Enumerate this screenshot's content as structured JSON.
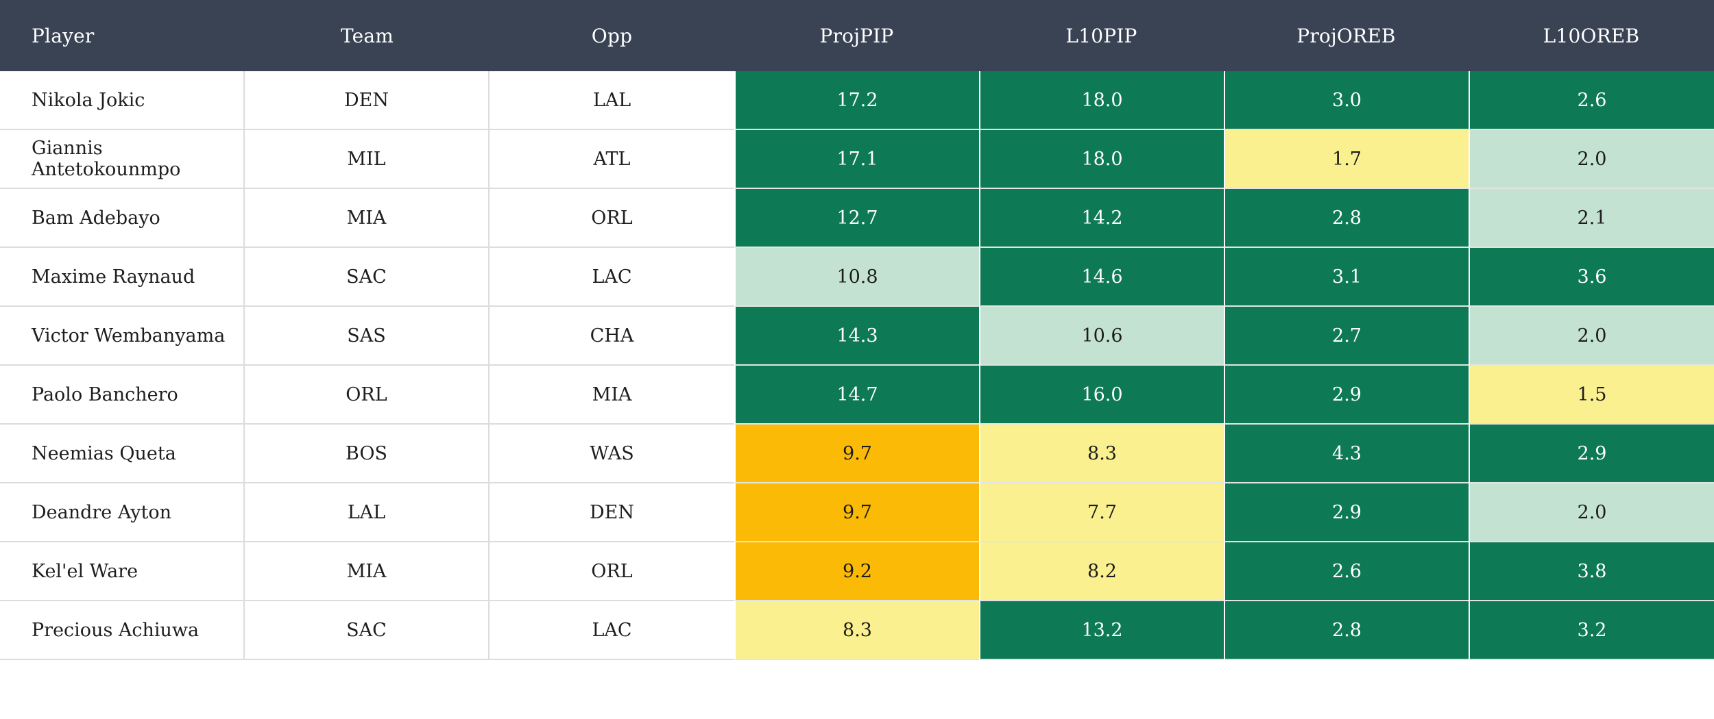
{
  "header": {
    "bg": "#3A4354",
    "fg": "#FFFFFF"
  },
  "palette": {
    "green": {
      "bg": "#0E7A55",
      "fg": "#FFFFFF"
    },
    "mint": {
      "bg": "#C4E2D2",
      "fg": "#1C1C1C"
    },
    "yellow": {
      "bg": "#FAF08F",
      "fg": "#1C1C1C"
    },
    "orange": {
      "bg": "#FBBA05",
      "fg": "#1C1C1C"
    }
  },
  "table": {
    "columns": [
      "Player",
      "Team",
      "Opp",
      "ProjPIP",
      "L10PIP",
      "ProjOREB",
      "L10OREB"
    ],
    "rows": [
      {
        "player": "Nikola Jokic",
        "team": "DEN",
        "opp": "LAL",
        "proj_pip": {
          "value": "17.2",
          "level": "green"
        },
        "l10_pip": {
          "value": "18.0",
          "level": "green"
        },
        "proj_oreb": {
          "value": "3.0",
          "level": "green"
        },
        "l10_oreb": {
          "value": "2.6",
          "level": "green"
        }
      },
      {
        "player": "Giannis Antetokounmpo",
        "team": "MIL",
        "opp": "ATL",
        "proj_pip": {
          "value": "17.1",
          "level": "green"
        },
        "l10_pip": {
          "value": "18.0",
          "level": "green"
        },
        "proj_oreb": {
          "value": "1.7",
          "level": "yellow"
        },
        "l10_oreb": {
          "value": "2.0",
          "level": "mint"
        }
      },
      {
        "player": "Bam Adebayo",
        "team": "MIA",
        "opp": "ORL",
        "proj_pip": {
          "value": "12.7",
          "level": "green"
        },
        "l10_pip": {
          "value": "14.2",
          "level": "green"
        },
        "proj_oreb": {
          "value": "2.8",
          "level": "green"
        },
        "l10_oreb": {
          "value": "2.1",
          "level": "mint"
        }
      },
      {
        "player": "Maxime Raynaud",
        "team": "SAC",
        "opp": "LAC",
        "proj_pip": {
          "value": "10.8",
          "level": "mint"
        },
        "l10_pip": {
          "value": "14.6",
          "level": "green"
        },
        "proj_oreb": {
          "value": "3.1",
          "level": "green"
        },
        "l10_oreb": {
          "value": "3.6",
          "level": "green"
        }
      },
      {
        "player": "Victor Wembanyama",
        "team": "SAS",
        "opp": "CHA",
        "proj_pip": {
          "value": "14.3",
          "level": "green"
        },
        "l10_pip": {
          "value": "10.6",
          "level": "mint"
        },
        "proj_oreb": {
          "value": "2.7",
          "level": "green"
        },
        "l10_oreb": {
          "value": "2.0",
          "level": "mint"
        }
      },
      {
        "player": "Paolo Banchero",
        "team": "ORL",
        "opp": "MIA",
        "proj_pip": {
          "value": "14.7",
          "level": "green"
        },
        "l10_pip": {
          "value": "16.0",
          "level": "green"
        },
        "proj_oreb": {
          "value": "2.9",
          "level": "green"
        },
        "l10_oreb": {
          "value": "1.5",
          "level": "yellow"
        }
      },
      {
        "player": "Neemias Queta",
        "team": "BOS",
        "opp": "WAS",
        "proj_pip": {
          "value": "9.7",
          "level": "orange"
        },
        "l10_pip": {
          "value": "8.3",
          "level": "yellow"
        },
        "proj_oreb": {
          "value": "4.3",
          "level": "green"
        },
        "l10_oreb": {
          "value": "2.9",
          "level": "green"
        }
      },
      {
        "player": "Deandre Ayton",
        "team": "LAL",
        "opp": "DEN",
        "proj_pip": {
          "value": "9.7",
          "level": "orange"
        },
        "l10_pip": {
          "value": "7.7",
          "level": "yellow"
        },
        "proj_oreb": {
          "value": "2.9",
          "level": "green"
        },
        "l10_oreb": {
          "value": "2.0",
          "level": "mint"
        }
      },
      {
        "player": "Kel'el Ware",
        "team": "MIA",
        "opp": "ORL",
        "proj_pip": {
          "value": "9.2",
          "level": "orange"
        },
        "l10_pip": {
          "value": "8.2",
          "level": "yellow"
        },
        "proj_oreb": {
          "value": "2.6",
          "level": "green"
        },
        "l10_oreb": {
          "value": "3.8",
          "level": "green"
        }
      },
      {
        "player": "Precious Achiuwa",
        "team": "SAC",
        "opp": "LAC",
        "proj_pip": {
          "value": "8.3",
          "level": "yellow"
        },
        "l10_pip": {
          "value": "13.2",
          "level": "green"
        },
        "proj_oreb": {
          "value": "2.8",
          "level": "green"
        },
        "l10_oreb": {
          "value": "3.2",
          "level": "green"
        }
      }
    ]
  }
}
